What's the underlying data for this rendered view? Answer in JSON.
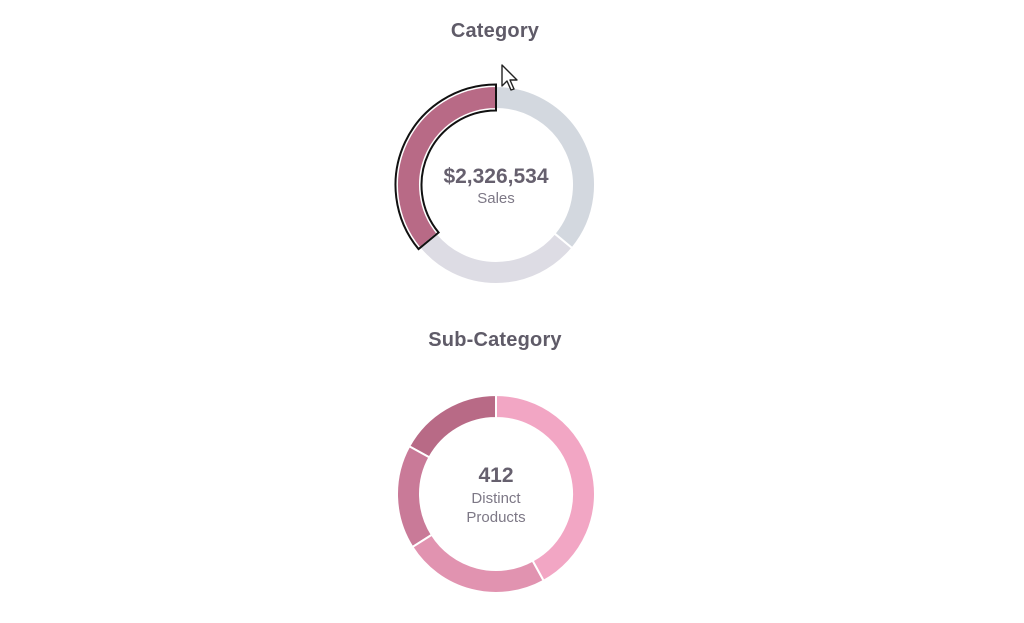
{
  "chart_data": [
    {
      "type": "pie",
      "title": "Category",
      "center_value": "$2,326,534",
      "center_label": "Sales",
      "selected_index": 0,
      "slices": [
        {
          "share": 0.36,
          "color": "#b86a86"
        },
        {
          "share": 0.28,
          "color": "#dddce4"
        },
        {
          "share": 0.36,
          "color": "#d3d8df"
        }
      ]
    },
    {
      "type": "pie",
      "title": "Sub-Category",
      "center_value": "412",
      "center_label": "Distinct\nProducts",
      "slices": [
        {
          "share": 0.17,
          "color": "#b86a86"
        },
        {
          "share": 0.17,
          "color": "#c97a98"
        },
        {
          "share": 0.24,
          "color": "#e193b0"
        },
        {
          "share": 0.42,
          "color": "#f2a6c4"
        }
      ]
    }
  ],
  "icons": {
    "cursor": "mouse-pointer-icon"
  }
}
